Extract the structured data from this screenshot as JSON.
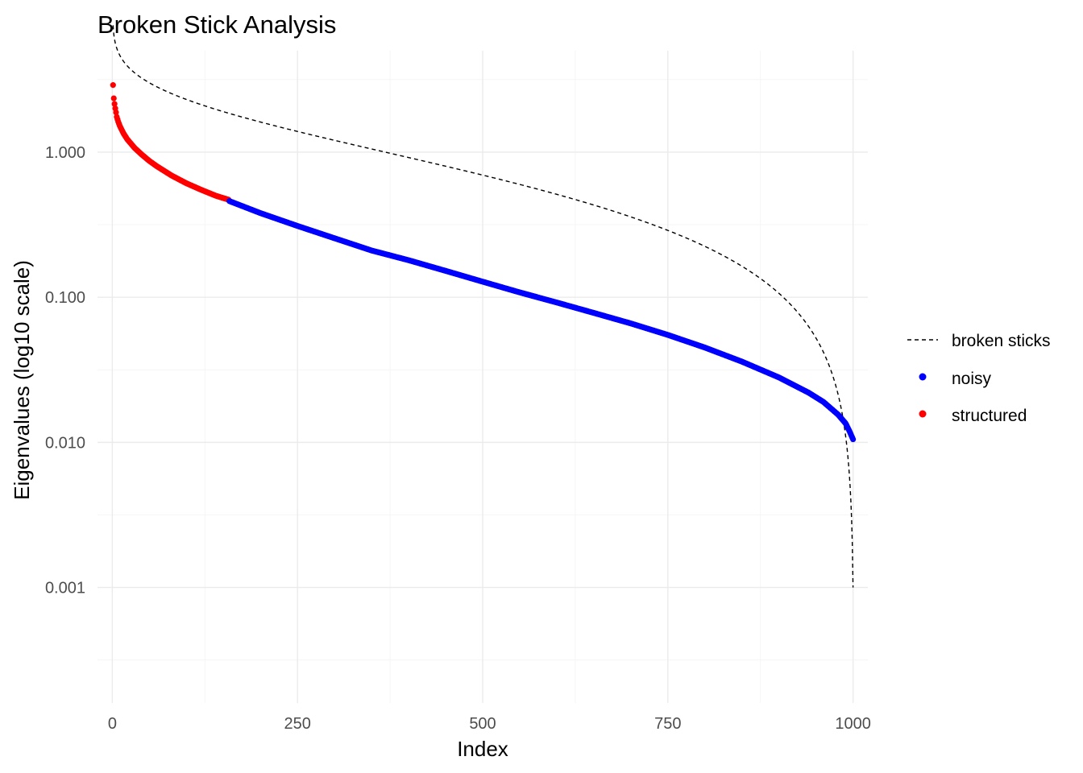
{
  "chart_data": {
    "type": "scatter",
    "title": "Broken Stick Analysis",
    "xlabel": "Index",
    "ylabel": "Eigenvalues (log10 scale)",
    "x_scale": "linear",
    "y_scale": "log10",
    "xlim": [
      -20,
      1020
    ],
    "ylim": [
      0.00016,
      5.0
    ],
    "x_ticks": [
      0,
      250,
      500,
      750,
      1000
    ],
    "x_tick_labels": [
      "0",
      "250",
      "500",
      "750",
      "1000"
    ],
    "y_ticks": [
      0.001,
      0.01,
      0.1,
      1.0
    ],
    "y_tick_labels": [
      "0.001",
      "0.010",
      "0.100",
      "1.000"
    ],
    "grid": true,
    "legend_position": "right",
    "legend": [
      {
        "key": "broken_sticks",
        "label": "broken sticks",
        "kind": "dashed-line",
        "color": "#000000"
      },
      {
        "key": "noisy",
        "label": "noisy",
        "kind": "point",
        "color": "#0000ff"
      },
      {
        "key": "structured",
        "label": "structured",
        "kind": "point",
        "color": "#ff0000"
      }
    ],
    "series": [
      {
        "name": "structured",
        "kind": "points",
        "color": "#ff0000",
        "x_range": [
          1,
          157
        ],
        "x": [
          1,
          2,
          3,
          4,
          5,
          6,
          8,
          10,
          15,
          20,
          30,
          40,
          50,
          60,
          80,
          100,
          120,
          140,
          157
        ],
        "y": [
          2.9,
          2.35,
          2.15,
          2.0,
          1.88,
          1.75,
          1.62,
          1.52,
          1.35,
          1.23,
          1.07,
          0.96,
          0.87,
          0.8,
          0.69,
          0.61,
          0.55,
          0.5,
          0.47
        ]
      },
      {
        "name": "noisy",
        "kind": "points",
        "color": "#0000ff",
        "x_range": [
          158,
          1000
        ],
        "x": [
          158,
          200,
          250,
          300,
          350,
          400,
          450,
          500,
          550,
          600,
          650,
          700,
          750,
          800,
          850,
          900,
          940,
          960,
          980,
          990,
          995,
          1000
        ],
        "y": [
          0.46,
          0.38,
          0.31,
          0.255,
          0.21,
          0.18,
          0.152,
          0.128,
          0.108,
          0.092,
          0.078,
          0.066,
          0.055,
          0.045,
          0.036,
          0.028,
          0.022,
          0.019,
          0.0155,
          0.0135,
          0.012,
          0.0105
        ]
      },
      {
        "name": "broken sticks",
        "kind": "dashed-line",
        "color": "#000000",
        "n": 1000
      }
    ]
  }
}
